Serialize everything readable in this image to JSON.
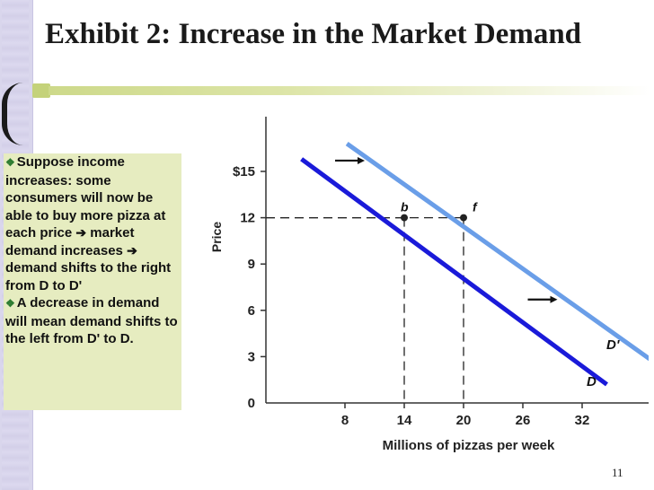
{
  "slide": {
    "title": "Exhibit 2: Increase in the Market Demand",
    "page_number": "11",
    "text_block": {
      "p1_a": "Suppose income increases: some consumers will now be able to buy more pizza at each price ",
      "p1_arrow": "➔",
      "p1_b": " market demand increases ",
      "p1_arrow2": "➔",
      "p1_c": " demand shifts to the right from D to D'",
      "p2": "A decrease in demand  will mean demand shifts to the left from D' to D."
    }
  },
  "colors": {
    "demand_D": "#1a1ad9",
    "demand_D_prime": "#6a9ee8",
    "axis": "#333333",
    "textbox": "#e6ecc0"
  },
  "chart_data": {
    "type": "line",
    "title": "",
    "xlabel": "Millions of  pizzas per week",
    "ylabel": "Price",
    "xlim": [
      0,
      38
    ],
    "ylim": [
      0,
      17
    ],
    "x_ticks": [
      {
        "value": 8,
        "label": "8"
      },
      {
        "value": 14,
        "label": "14"
      },
      {
        "value": 20,
        "label": "20"
      },
      {
        "value": 26,
        "label": "26"
      },
      {
        "value": 32,
        "label": "32"
      }
    ],
    "y_ticks": [
      {
        "value": 0,
        "label": "0"
      },
      {
        "value": 3,
        "label": "3"
      },
      {
        "value": 6,
        "label": "6"
      },
      {
        "value": 9,
        "label": "9"
      },
      {
        "value": 12,
        "label": "12"
      },
      {
        "value": 15,
        "label": "$15"
      }
    ],
    "series": [
      {
        "name": "D",
        "points": [
          [
            3.6,
            15.8
          ],
          [
            34.5,
            1.2
          ]
        ]
      },
      {
        "name": "D'",
        "points": [
          [
            8.2,
            16.8
          ],
          [
            39.6,
            2.5
          ]
        ]
      }
    ],
    "points": [
      {
        "label": "b",
        "x": 14,
        "y": 12
      },
      {
        "label": "f",
        "x": 20,
        "y": 12
      }
    ],
    "shift_arrows": [
      {
        "x": [
          7,
          10
        ],
        "y": 15.7
      },
      {
        "x": [
          26.5,
          29.5
        ],
        "y": 6.7
      }
    ],
    "grid": false
  }
}
